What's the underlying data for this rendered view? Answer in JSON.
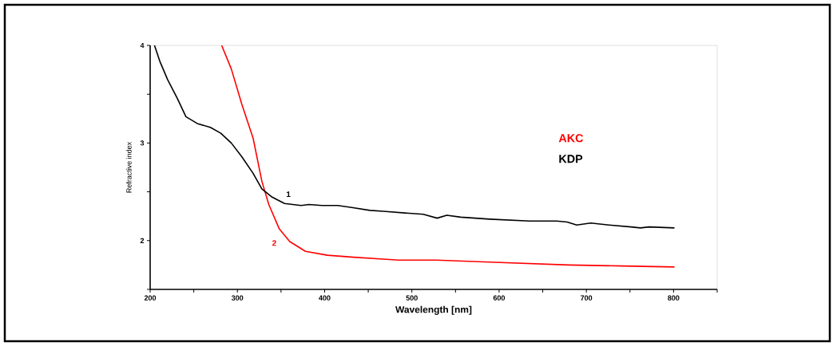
{
  "chart_data": {
    "type": "line",
    "xlabel": "Wavelength [nm]",
    "ylabel": "Refractive index",
    "xlim": [
      200,
      850
    ],
    "ylim": [
      1.5,
      4
    ],
    "xticks": [
      200,
      {
        "value": 250,
        "label": null
      },
      300,
      {
        "value": 350,
        "label": null
      },
      400,
      {
        "value": 450,
        "label": null
      },
      500,
      {
        "value": 550,
        "label": null
      },
      600,
      {
        "value": 650,
        "label": null
      },
      700,
      {
        "value": 750,
        "label": null
      },
      800,
      {
        "value": 850,
        "label": null
      }
    ],
    "yticks": [
      {
        "value": 1.5,
        "label": null
      },
      2,
      {
        "value": 2.5,
        "label": null
      },
      3,
      {
        "value": 3.5,
        "label": null
      },
      4
    ],
    "legend": "right",
    "grid": false,
    "marker": "none",
    "line_style": "solid",
    "series": [
      {
        "name": "AKC",
        "color": "#ff0000",
        "x": [
          282,
          293,
          305,
          318,
          328,
          336,
          348,
          360,
          378,
          403,
          433,
          467,
          485,
          528,
          589,
          680,
          741,
          801
        ],
        "values": [
          4.0,
          3.76,
          3.4,
          3.05,
          2.61,
          2.37,
          2.12,
          1.99,
          1.89,
          1.85,
          1.83,
          1.81,
          1.8,
          1.8,
          1.78,
          1.75,
          1.74,
          1.73
        ]
      },
      {
        "name": "KDP",
        "color": "#000000",
        "x": [
          205,
          211,
          220,
          231,
          241,
          254,
          269,
          281,
          293,
          305,
          318,
          328,
          339,
          354,
          373,
          382,
          397,
          415,
          431,
          452,
          467,
          497,
          513,
          529,
          540,
          556,
          589,
          635,
          666,
          678,
          689,
          705,
          726,
          751,
          762,
          772,
          801
        ],
        "values": [
          4.0,
          3.84,
          3.65,
          3.46,
          3.27,
          3.2,
          3.16,
          3.1,
          3.0,
          2.86,
          2.69,
          2.53,
          2.45,
          2.38,
          2.36,
          2.37,
          2.36,
          2.36,
          2.34,
          2.31,
          2.3,
          2.28,
          2.27,
          2.23,
          2.26,
          2.24,
          2.22,
          2.2,
          2.2,
          2.19,
          2.16,
          2.18,
          2.16,
          2.14,
          2.13,
          2.14,
          2.13
        ]
      }
    ],
    "annotations": [
      "1",
      "2"
    ]
  }
}
